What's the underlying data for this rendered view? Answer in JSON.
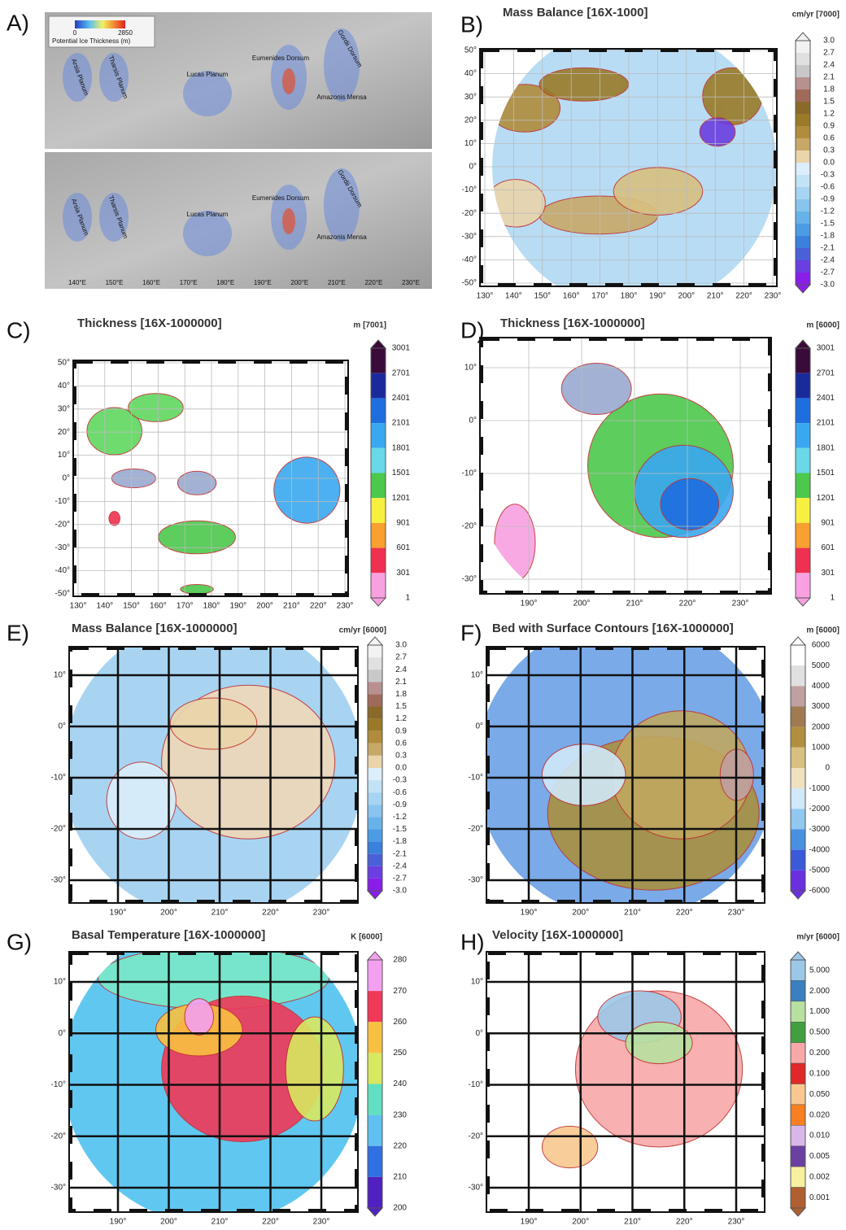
{
  "panel_a": {
    "letter": "A)",
    "legend_title": "Potential Ice Thickness (m)",
    "legend_min": "0",
    "legend_max": "2850",
    "place_names": [
      "Arsia Planum",
      "Tharsis Planum",
      "Lucas Planum",
      "Eumenides Dorsum",
      "Gordii Dorsum",
      "Amazonis Mensa"
    ],
    "x_labels": [
      "140°E",
      "150°E",
      "160°E",
      "170°E",
      "180°E",
      "190°E",
      "200°E",
      "210°E",
      "220°E",
      "230°E"
    ]
  },
  "maps": [
    {
      "letter": "B)",
      "title": "Mass Balance [16X-1000]",
      "unit": "cm/yr [7000]",
      "colorbar": {
        "labels": [
          "3.0",
          "2.7",
          "2.4",
          "2.1",
          "1.8",
          "1.5",
          "1.2",
          "0.9",
          "0.6",
          "0.3",
          "0.0",
          "-0.3",
          "-0.6",
          "-0.9",
          "-1.2",
          "-1.5",
          "-1.8",
          "-2.1",
          "-2.4",
          "-2.7",
          "-3.0"
        ],
        "colors": [
          "#f2f2f2",
          "#e0e0e0",
          "#c8c8c8",
          "#b89090",
          "#a06a5a",
          "#8a6a2a",
          "#9a7a28",
          "#b08c3c",
          "#c8a868",
          "#ead4aa",
          "#dceefa",
          "#c2e2f6",
          "#a6d4f2",
          "#88c4ee",
          "#68b2ea",
          "#4c9ce4",
          "#3a80dc",
          "#4a60d8",
          "#6a3ee0",
          "#8a1ee8"
        ]
      },
      "lat_labels": [
        "50°",
        "40°",
        "30°",
        "20°",
        "10°",
        "0°",
        "-10°",
        "-20°",
        "-30°",
        "-40°",
        "-50°"
      ],
      "lon_labels": [
        "130°",
        "140°",
        "150°",
        "160°",
        "170°",
        "180°",
        "190°",
        "200°",
        "210°",
        "220°",
        "230°"
      ]
    },
    {
      "letter": "C)",
      "title": "Thickness [16X-1000000]",
      "unit": "m [7001]",
      "colorbar": {
        "labels": [
          "3001",
          "2701",
          "2401",
          "2101",
          "1801",
          "1501",
          "1201",
          "901",
          "601",
          "301",
          "1"
        ],
        "colors": [
          "#3a0a3a",
          "#1a2a9a",
          "#1e6ee0",
          "#3aa8f0",
          "#6ad8e8",
          "#4cc84c",
          "#f8f040",
          "#f8a030",
          "#f03050",
          "#f8a0e0"
        ]
      },
      "lat_labels": [
        "50°",
        "40°",
        "30°",
        "20°",
        "10°",
        "0°",
        "-10°",
        "-20°",
        "-30°",
        "-40°",
        "-50°"
      ],
      "lon_labels": [
        "130°",
        "140°",
        "150°",
        "160°",
        "170°",
        "180°",
        "190°",
        "200°",
        "210°",
        "220°",
        "230°"
      ]
    },
    {
      "letter": "D)",
      "title": "Thickness [16X-1000000]",
      "unit": "m [6000]",
      "colorbar": {
        "labels": [
          "3001",
          "2701",
          "2401",
          "2101",
          "1801",
          "1501",
          "1201",
          "901",
          "601",
          "301",
          "1"
        ],
        "colors": [
          "#3a0a3a",
          "#1a2a9a",
          "#1e6ee0",
          "#3aa8f0",
          "#6ad8e8",
          "#4cc84c",
          "#f8f040",
          "#f8a030",
          "#f03050",
          "#f8a0e0"
        ]
      },
      "lat_labels": [
        "10°",
        "0°",
        "-10°",
        "-20°",
        "-30°"
      ],
      "lon_labels": [
        "190°",
        "200°",
        "210°",
        "220°",
        "230°"
      ]
    },
    {
      "letter": "E)",
      "title": "Mass Balance [16X-1000000]",
      "unit": "cm/yr [6000]",
      "colorbar": {
        "labels": [
          "3.0",
          "2.7",
          "2.4",
          "2.1",
          "1.8",
          "1.5",
          "1.2",
          "0.9",
          "0.6",
          "0.3",
          "0.0",
          "-0.3",
          "-0.6",
          "-0.9",
          "-1.2",
          "-1.5",
          "-1.8",
          "-2.1",
          "-2.4",
          "-2.7",
          "-3.0"
        ],
        "colors": [
          "#f2f2f2",
          "#e0e0e0",
          "#c8c8c8",
          "#b89090",
          "#a06a5a",
          "#8a6a2a",
          "#9a7a28",
          "#b08c3c",
          "#c8a868",
          "#ead4aa",
          "#dceefa",
          "#c2e2f6",
          "#a6d4f2",
          "#88c4ee",
          "#68b2ea",
          "#4c9ce4",
          "#3a80dc",
          "#4a60d8",
          "#6a3ee0",
          "#8a1ee8"
        ]
      },
      "lat_labels": [
        "10°",
        "0°",
        "-10°",
        "-20°",
        "-30°"
      ],
      "lon_labels": [
        "190°",
        "200°",
        "210°",
        "220°",
        "230°"
      ]
    },
    {
      "letter": "F)",
      "title": "Bed with Surface Contours [16X-1000000]",
      "unit": "m [6000]",
      "colorbar": {
        "labels": [
          "6000",
          "5000",
          "4000",
          "3000",
          "2000",
          "1000",
          "0",
          "-1000",
          "-2000",
          "-3000",
          "-4000",
          "-5000",
          "-6000"
        ],
        "colors": [
          "#ffffff",
          "#e0e0e0",
          "#c0a0a0",
          "#a07a50",
          "#b09040",
          "#d8c080",
          "#f0e0c0",
          "#d0e8f8",
          "#90c8f0",
          "#4a90e0",
          "#3a5ad8",
          "#6a30e0"
        ]
      },
      "lat_labels": [
        "10°",
        "0°",
        "-10°",
        "-20°",
        "-30°"
      ],
      "lon_labels": [
        "190°",
        "200°",
        "210°",
        "220°",
        "230°"
      ]
    },
    {
      "letter": "G)",
      "title": "Basal Temperature [16X-1000000]",
      "unit": "K [6000]",
      "colorbar": {
        "labels": [
          "280",
          "270",
          "260",
          "250",
          "240",
          "230",
          "220",
          "210",
          "200"
        ],
        "colors": [
          "#f4a0f0",
          "#f03858",
          "#f8c040",
          "#d8e860",
          "#60e0c0",
          "#60c0f0",
          "#3070e0",
          "#5020c0"
        ]
      },
      "lat_labels": [
        "10°",
        "0°",
        "-10°",
        "-20°",
        "-30°"
      ],
      "lon_labels": [
        "190°",
        "200°",
        "210°",
        "220°",
        "230°"
      ]
    },
    {
      "letter": "H)",
      "title": "Velocity [16X-1000000]",
      "unit": "m/yr [6000]",
      "colorbar": {
        "labels": [
          "5.000",
          "2.000",
          "1.000",
          "0.500",
          "0.200",
          "0.100",
          "0.050",
          "0.020",
          "0.010",
          "0.005",
          "0.002",
          "0.001"
        ],
        "colors": [
          "#9cc8e8",
          "#3a80c0",
          "#b8e0a0",
          "#40a040",
          "#f8a8a8",
          "#e02828",
          "#f8c890",
          "#f88020",
          "#d8b8e8",
          "#6a40a0",
          "#f8f0a0",
          "#b06030"
        ]
      },
      "lat_labels": [
        "10°",
        "0°",
        "-10°",
        "-20°",
        "-30°"
      ],
      "lon_labels": [
        "190°",
        "200°",
        "210°",
        "220°",
        "230°"
      ]
    }
  ]
}
